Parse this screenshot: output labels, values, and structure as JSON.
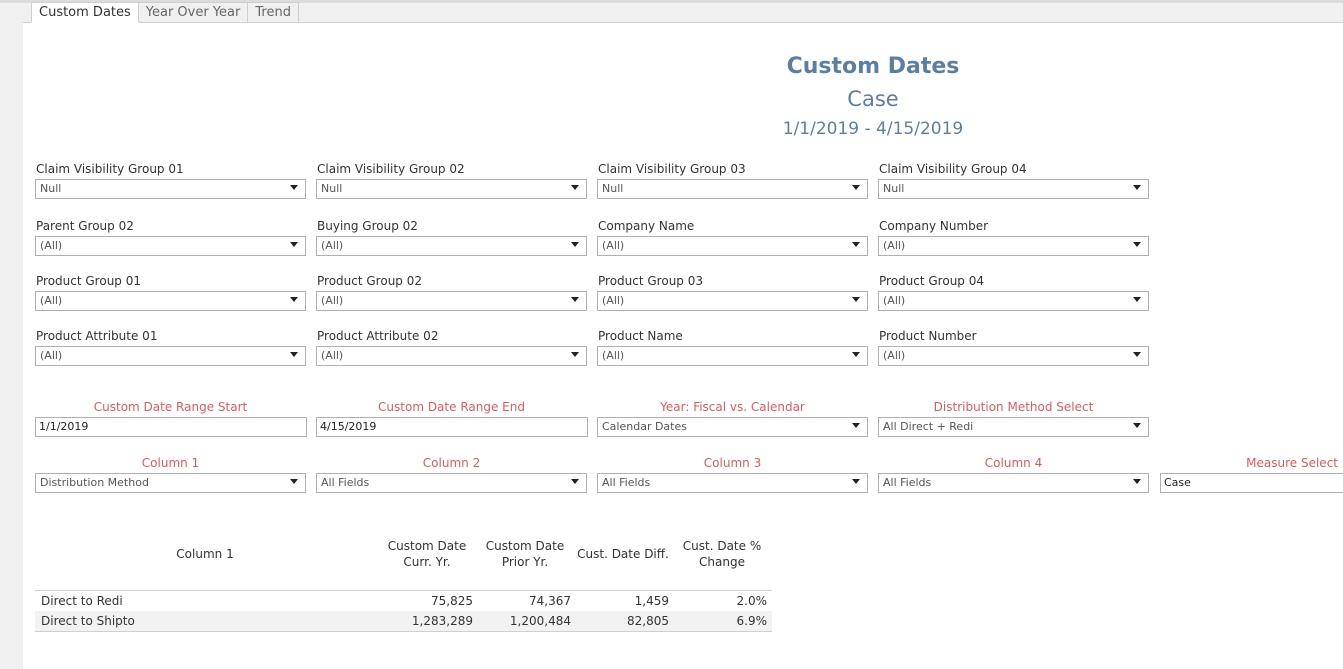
{
  "tabs": [
    {
      "label": "Custom Dates",
      "active": true
    },
    {
      "label": "Year Over Year",
      "active": false
    },
    {
      "label": "Trend",
      "active": false
    }
  ],
  "header": {
    "title": "Custom Dates",
    "subtitle": "Case",
    "date_range": "1/1/2019 - 4/15/2019"
  },
  "filters": [
    {
      "label": "Claim Visibility Group 01",
      "value": "Null"
    },
    {
      "label": "Claim Visibility Group 02",
      "value": "Null"
    },
    {
      "label": "Claim Visibility Group 03",
      "value": "Null"
    },
    {
      "label": "Claim Visibility Group 04",
      "value": "Null"
    },
    {
      "label": "Parent Group 02",
      "value": "(All)"
    },
    {
      "label": "Buying Group 02",
      "value": "(All)"
    },
    {
      "label": "Company Name",
      "value": "(All)"
    },
    {
      "label": "Company Number",
      "value": "(All)"
    },
    {
      "label": "Product Group 01",
      "value": "(All)"
    },
    {
      "label": "Product Group 02",
      "value": "(All)"
    },
    {
      "label": "Product Group 03",
      "value": "(All)"
    },
    {
      "label": "Product Group 04",
      "value": "(All)"
    },
    {
      "label": "Product Attribute 01",
      "value": "(All)"
    },
    {
      "label": "Product Attribute 02",
      "value": "(All)"
    },
    {
      "label": "Product Name",
      "value": "(All)"
    },
    {
      "label": "Product Number",
      "value": "(All)"
    }
  ],
  "parameters": {
    "date_start": {
      "label": "Custom Date Range Start",
      "value": "1/1/2019"
    },
    "date_end": {
      "label": "Custom Date Range End",
      "value": "4/15/2019"
    },
    "year_type": {
      "label": "Year: Fiscal vs. Calendar",
      "value": "Calendar Dates"
    },
    "distribution": {
      "label": "Distribution Method Select",
      "value": "All Direct + Redi"
    },
    "column1": {
      "label": "Column 1",
      "value": "Distribution Method"
    },
    "column2": {
      "label": "Column 2",
      "value": "All Fields"
    },
    "column3": {
      "label": "Column 3",
      "value": "All Fields"
    },
    "column4": {
      "label": "Column 4",
      "value": "All Fields"
    },
    "measure": {
      "label": "Measure Select",
      "value": "Case"
    }
  },
  "table": {
    "headers": {
      "col1": "Column 1",
      "curr_line1": "Custom Date",
      "curr_line2": "Curr. Yr.",
      "prior_line1": "Custom Date",
      "prior_line2": "Prior Yr.",
      "diff": "Cust. Date Diff.",
      "pct_line1": "Cust. Date %",
      "pct_line2": "Change"
    },
    "rows": [
      {
        "name": "Direct to Redi",
        "curr": "75,825",
        "prior": "74,367",
        "diff": "1,459",
        "pct": "2.0%"
      },
      {
        "name": "Direct to Shipto",
        "curr": "1,283,289",
        "prior": "1,200,484",
        "diff": "82,805",
        "pct": "6.9%"
      }
    ]
  }
}
